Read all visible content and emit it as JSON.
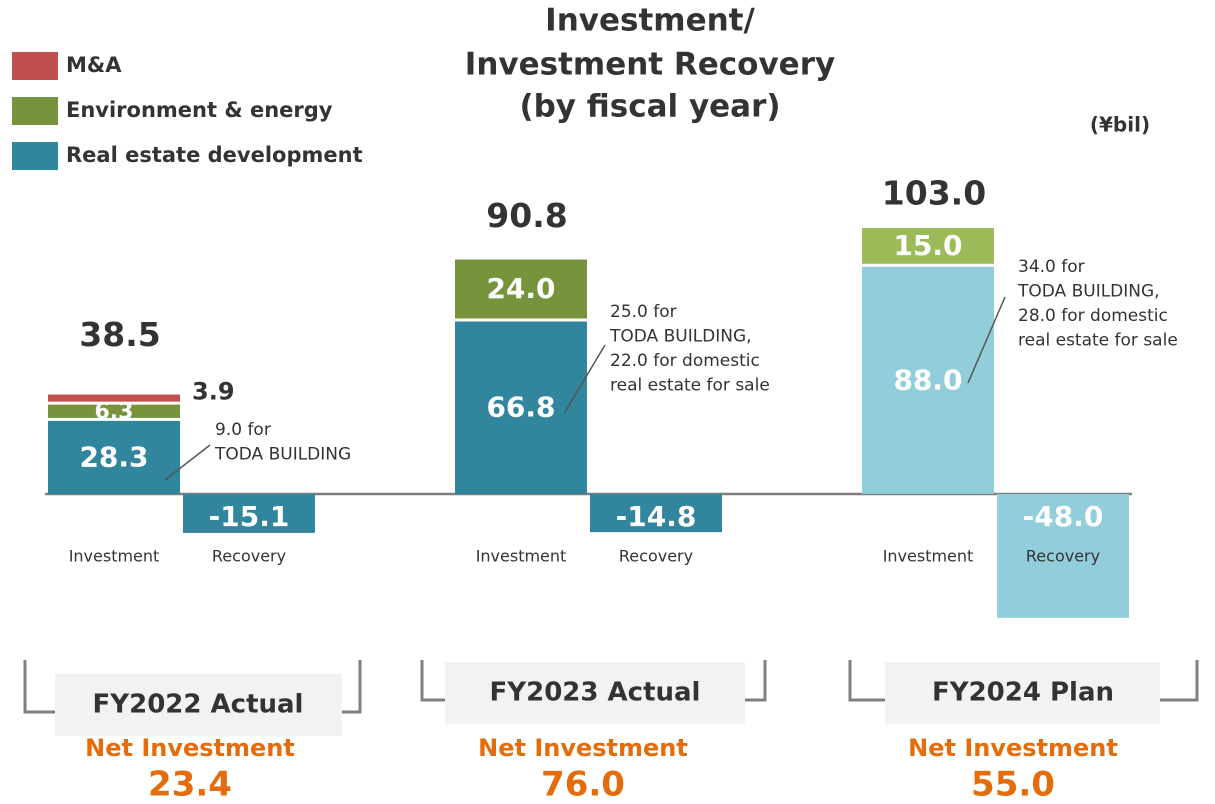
{
  "chart_data": {
    "type": "bar",
    "stacked": true,
    "title": [
      "Investment/",
      "Investment Recovery",
      "(by fiscal year)"
    ],
    "unit": "(¥bil)",
    "categories": [
      "Investment",
      "Recovery",
      "Investment",
      "Recovery",
      "Investment",
      "Recovery"
    ],
    "groups": [
      "FY2022 Actual",
      "FY2023 Actual",
      "FY2024 Plan"
    ],
    "series": [
      {
        "name": "Real estate development",
        "color": "#31859c",
        "colors": [
          "#31859c",
          "#31859c",
          "#31859c",
          "#31859c",
          "#92cddc",
          "#92cddc"
        ],
        "values": [
          28.3,
          -15.1,
          66.8,
          -14.8,
          88.0,
          -48.0
        ],
        "value_labels": [
          "28.3",
          "-15.1",
          "66.8",
          "-14.8",
          "88.0",
          "-48.0"
        ]
      },
      {
        "name": "Environment & energy",
        "color": "#77933c",
        "colors": [
          "#77933c",
          null,
          "#77933c",
          null,
          "#9bbb59",
          null
        ],
        "values": [
          6.3,
          null,
          24.0,
          null,
          15.0,
          null
        ],
        "value_labels": [
          "6.3",
          null,
          "24.0",
          null,
          "15.0",
          null
        ]
      },
      {
        "name": "M&A",
        "color": "#c0504d",
        "colors": [
          "#c0504d",
          null,
          null,
          null,
          null,
          null
        ],
        "values": [
          3.9,
          null,
          null,
          null,
          null,
          null
        ],
        "value_labels": [
          "3.9",
          null,
          null,
          null,
          null,
          null
        ]
      }
    ],
    "totals": [
      38.5,
      90.8,
      103.0
    ],
    "total_labels": [
      "38.5",
      "90.8",
      "103.0"
    ],
    "annotations": [
      [
        "9.0 for",
        "TODA BUILDING"
      ],
      [
        "25.0 for",
        "TODA BUILDING,",
        "22.0 for domestic",
        "real estate for sale"
      ],
      [
        "34.0 for",
        "TODA BUILDING,",
        "28.0 for domestic",
        "real estate for sale"
      ]
    ],
    "net_title": "Net Investment",
    "net_values": [
      23.4,
      76.0,
      55.0
    ],
    "net_labels": [
      "23.4",
      "76.0",
      "55.0"
    ],
    "ylim": [
      -50,
      110
    ]
  }
}
